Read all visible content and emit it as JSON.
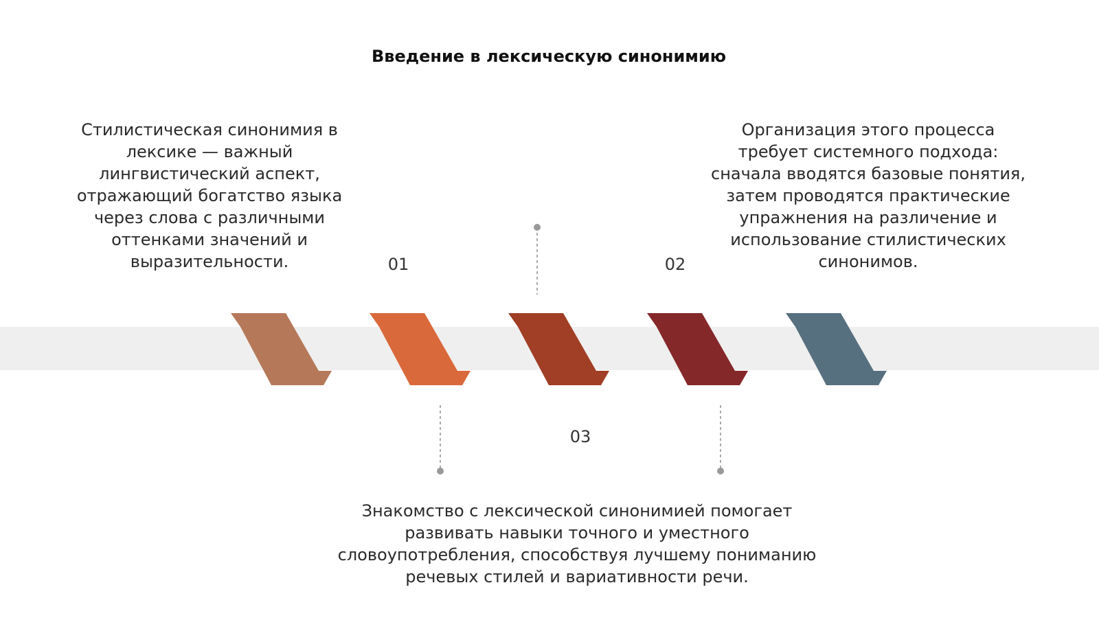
{
  "title": "Введение в лексическую синонимию",
  "items": [
    {
      "number": "01",
      "lines": [
        "Стилистическая синонимия в",
        "лексике — важный",
        "лингвистический аспект,",
        "отражающий богатство языка",
        "через слова с различными",
        "оттенками значений и",
        "выразительности."
      ]
    },
    {
      "number": "02",
      "lines": [
        "Организация этого процесса",
        "требует системного подхода:",
        "сначала вводятся базовые понятия,",
        "затем проводятся практические",
        "упражнения на различение и",
        "использование стилистических",
        "синонимов."
      ]
    },
    {
      "number": "03",
      "lines": [
        "Знакомство с лексической синонимией помогает",
        "развивать навыки точного и уместного",
        "словоупотребления, способствуя лучшему пониманию",
        "речевых стилей и вариативности речи."
      ]
    }
  ]
}
